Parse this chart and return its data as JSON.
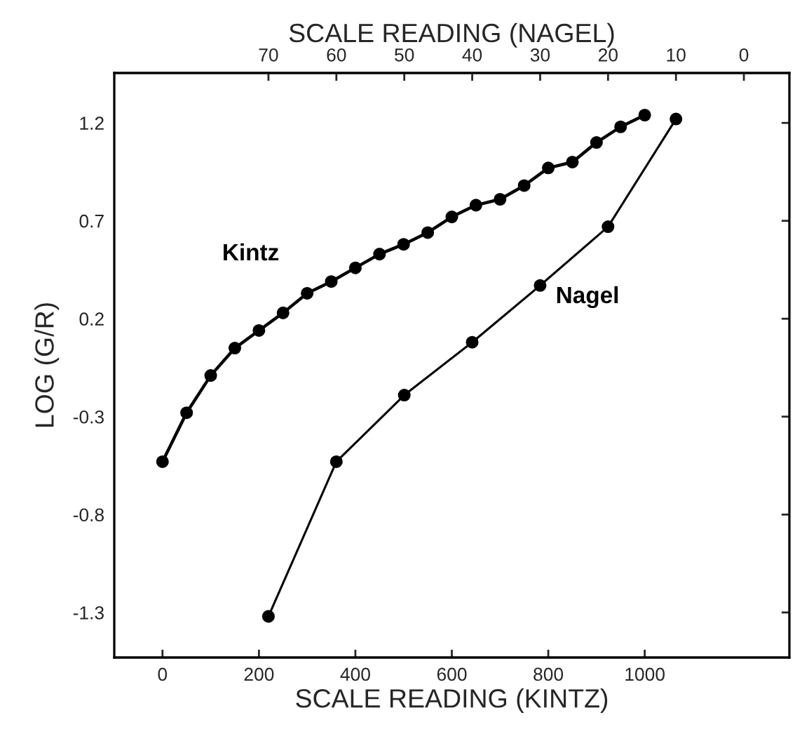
{
  "chart_data": {
    "type": "line",
    "xlabel": "SCALE READING (KINTZ)",
    "x2label": "SCALE READING (NAGEL)",
    "ylabel": "LOG (G/R)",
    "xlim": [
      -100,
      1300
    ],
    "xticks": [
      0,
      200,
      400,
      600,
      800,
      1000
    ],
    "x2lim": [
      92.7,
      -6.7
    ],
    "x2ticks": [
      70,
      60,
      50,
      40,
      30,
      20,
      10,
      0
    ],
    "ylim": [
      -1.53,
      1.455
    ],
    "yticks": [
      1.2,
      0.7,
      0.2,
      -0.3,
      -0.8,
      -1.3
    ],
    "marker": "circle",
    "grid": false,
    "legend": false,
    "series": [
      {
        "name": "Kintz",
        "color": "#000000",
        "x": [
          0,
          50,
          100,
          150,
          200,
          250,
          300,
          350,
          400,
          450,
          500,
          550,
          600,
          650,
          700,
          750,
          800,
          850,
          900,
          950,
          1000
        ],
        "values": [
          -0.53,
          -0.28,
          -0.09,
          0.05,
          0.14,
          0.23,
          0.33,
          0.39,
          0.46,
          0.53,
          0.58,
          0.64,
          0.72,
          0.78,
          0.81,
          0.88,
          0.97,
          1.0,
          1.1,
          1.18,
          1.24
        ]
      },
      {
        "name": "Nagel",
        "color": "#000000",
        "axis": "x2",
        "x": [
          70,
          60,
          50,
          40,
          30,
          20,
          10
        ],
        "values": [
          -1.32,
          -0.53,
          -0.19,
          0.08,
          0.37,
          0.67,
          1.22
        ]
      }
    ]
  }
}
